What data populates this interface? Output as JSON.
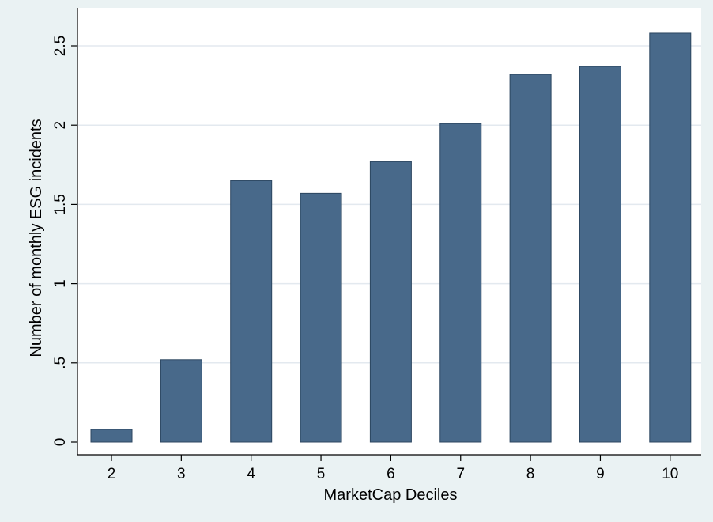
{
  "chart_data": {
    "type": "bar",
    "title": "",
    "xlabel": "MarketCap Deciles",
    "ylabel": "Number of monthly ESG incidents",
    "categories": [
      "2",
      "3",
      "4",
      "5",
      "6",
      "7",
      "8",
      "9",
      "10"
    ],
    "values": [
      0.08,
      0.52,
      1.65,
      1.57,
      1.77,
      2.01,
      2.32,
      2.37,
      2.58
    ],
    "ylim": [
      0,
      2.6
    ],
    "yticks": [
      0,
      0.5,
      1,
      1.5,
      2,
      2.5
    ],
    "ytick_labels": [
      "0",
      ".5",
      "1",
      "1.5",
      "2",
      "2.5"
    ],
    "grid": true,
    "legend": "none",
    "colors": {
      "bar": "#48698a",
      "bar_edge": "#2c4660",
      "grid": "#e3e9ef",
      "outer_background": "#eaf2f3",
      "plot_background": "#ffffff"
    }
  }
}
